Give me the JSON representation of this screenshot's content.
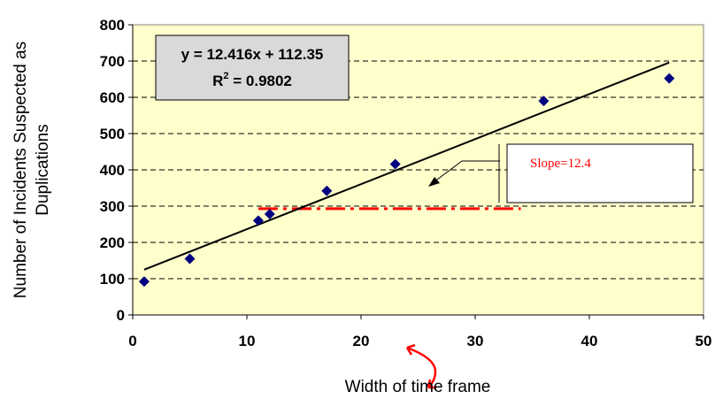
{
  "chart_data": {
    "type": "scatter",
    "xlabel": "Width of time frame",
    "ylabel": [
      "Number of Incidents Suspected as",
      "Duplications"
    ],
    "xlim": [
      0,
      50
    ],
    "ylim": [
      0,
      800
    ],
    "x_ticks": [
      0,
      10,
      20,
      30,
      40,
      50
    ],
    "y_ticks": [
      0,
      100,
      200,
      300,
      400,
      500,
      600,
      700,
      800
    ],
    "grid": "horizontal dashed",
    "plot_background": "#ffffcc",
    "series": [
      {
        "marker": "diamond",
        "color": "#000080",
        "x": [
          1,
          5,
          11,
          12,
          17,
          23,
          36,
          47
        ],
        "y": [
          92,
          155,
          260,
          278,
          342,
          416,
          590,
          652
        ]
      }
    ],
    "trendline": {
      "slope": 12.416,
      "intercept": 112.35,
      "x_range": [
        1,
        47
      ],
      "equation": "y = 12.416x + 112.35",
      "r_squared_label": "R",
      "r_squared_sup": "2",
      "r_squared_value": " = 0.9802"
    },
    "annotation": {
      "text": "Slope=12.4",
      "reference_y": 293,
      "reference_x_range": [
        11,
        34
      ],
      "color": "#ff0000"
    }
  }
}
